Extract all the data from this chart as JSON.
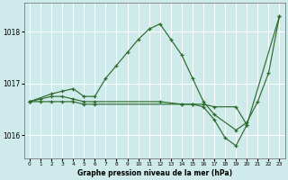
{
  "title": "Graphe pression niveau de la mer (hPa)",
  "bg_color": "#ceeaea",
  "grid_color": "#ffffff",
  "line_color": "#2d6b2d",
  "xlim": [
    -0.5,
    23.5
  ],
  "ylim": [
    1015.55,
    1018.55
  ],
  "yticks": [
    1016,
    1017,
    1018
  ],
  "xticks": [
    0,
    1,
    2,
    3,
    4,
    5,
    6,
    7,
    8,
    9,
    10,
    11,
    12,
    13,
    14,
    15,
    16,
    17,
    18,
    19,
    20,
    21,
    22,
    23
  ],
  "series": [
    {
      "x": [
        0,
        2,
        3,
        4,
        5,
        6,
        7,
        8,
        9,
        10,
        11,
        12,
        13,
        14,
        15,
        16,
        17,
        19,
        20,
        21,
        22,
        23
      ],
      "y": [
        1016.65,
        1016.8,
        1016.85,
        1016.9,
        1016.75,
        1016.75,
        1017.1,
        1017.35,
        1017.6,
        1017.85,
        1018.05,
        1018.15,
        1017.85,
        1017.55,
        1017.1,
        1016.65,
        1016.4,
        1016.1,
        1016.25,
        1016.65,
        1017.2,
        1018.3
      ]
    },
    {
      "x": [
        0,
        1,
        2,
        3,
        4,
        5,
        6,
        12,
        14,
        15,
        16,
        17,
        19,
        20,
        23
      ],
      "y": [
        1016.65,
        1016.7,
        1016.75,
        1016.75,
        1016.7,
        1016.65,
        1016.65,
        1016.65,
        1016.6,
        1016.6,
        1016.6,
        1016.55,
        1016.55,
        1016.2,
        1018.3
      ]
    },
    {
      "x": [
        0,
        1,
        2,
        3,
        4,
        5,
        6,
        14,
        15,
        16,
        17,
        18,
        19,
        20
      ],
      "y": [
        1016.65,
        1016.65,
        1016.65,
        1016.65,
        1016.65,
        1016.6,
        1016.6,
        1016.6,
        1016.6,
        1016.55,
        1016.3,
        1015.95,
        1015.8,
        1016.2
      ]
    }
  ]
}
